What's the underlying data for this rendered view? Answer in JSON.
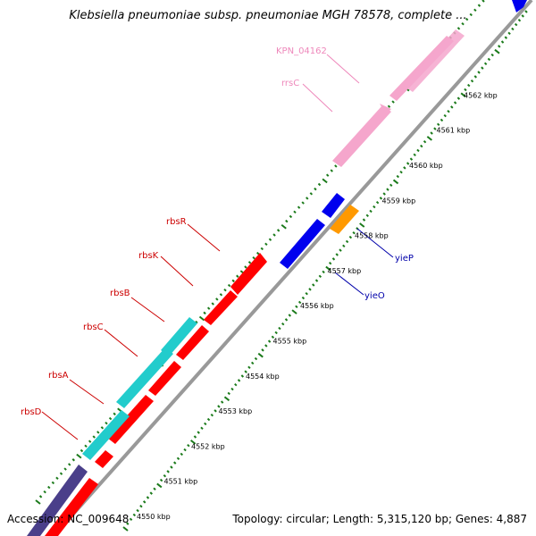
{
  "title": "Klebsiella pneumoniae subsp. pneumoniae MGH 78578, complete ...",
  "accession": "Accession: NC_009648",
  "topology": "Topology: circular; Length: 5,315,120 bp; Genes: 4,887",
  "colors": {
    "backbone": "#999999",
    "tick": "#1a7a1a",
    "gene_red": "#ff0000",
    "gene_blue": "#0000ee",
    "gene_orange": "#ff9900",
    "gene_cyan": "#22cccc",
    "gene_purple": "#4a3f8a",
    "rrna_pink": "#f5a6cc",
    "label_red": "#cc0000",
    "label_blue": "#0000aa",
    "label_pink": "#ee88bb"
  },
  "kbp_labels": [
    "4550 kbp",
    "4551 kbp",
    "4552 kbp",
    "4553 kbp",
    "4554 kbp",
    "4555 kbp",
    "4556 kbp",
    "4557 kbp",
    "4558 kbp",
    "4559 kbp",
    "4560 kbp",
    "4561 kbp",
    "4562 kbp"
  ],
  "gene_labels": {
    "rbsD": "rbsD",
    "rbsA": "rbsA",
    "rbsC": "rbsC",
    "rbsB": "rbsB",
    "rbsK": "rbsK",
    "rbsR": "rbsR",
    "yieO": "yieO",
    "yieP": "yieP",
    "rrsC": "rrsC",
    "KPN_04162": "KPN_04162"
  }
}
